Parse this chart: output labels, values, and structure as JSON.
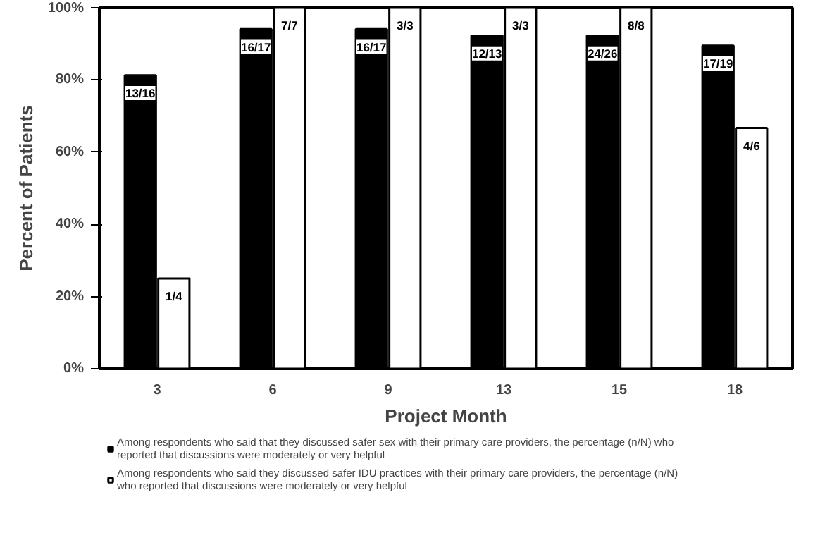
{
  "chart_data": {
    "type": "bar",
    "xlabel": "Project Month",
    "ylabel": "Percent of Patients",
    "categories": [
      "3",
      "6",
      "9",
      "13",
      "15",
      "18"
    ],
    "series": [
      {
        "name": "Among respondents who said that they discussed safer sex with their primary care providers, the percentage (n/N) who reported that discussions were moderately or very helpful",
        "color": "#000000",
        "values": [
          81.3,
          94.1,
          94.1,
          92.3,
          92.3,
          89.5
        ]
      },
      {
        "name": "Among respondents who said they discussed safer IDU practices with their primary care providers, the percentage (n/N) who reported that discussions were moderately or very helpful",
        "color": "#ffffff",
        "values": [
          25,
          100,
          100,
          100,
          100,
          66.7
        ]
      }
    ],
    "annotations": [
      {
        "text": "13/16",
        "x": "3",
        "y": 81.3
      },
      {
        "text": "16/17",
        "x": "6",
        "y": 94.1
      },
      {
        "text": "16/17",
        "x": "9",
        "y": 94.1
      },
      {
        "text": "12/13",
        "x": "13",
        "y": 92.3
      },
      {
        "text": "24/26",
        "x": "15",
        "y": 92.3
      },
      {
        "text": "17/19",
        "x": "18",
        "y": 89.5
      },
      {
        "text": "1/4",
        "x": "3",
        "y": 25
      },
      {
        "text": "7/7",
        "x": "6",
        "y": 100
      },
      {
        "text": "3/3",
        "x": "9",
        "y": 100
      },
      {
        "text": "3/3",
        "x": "13",
        "y": 100
      },
      {
        "text": "8/8",
        "x": "15",
        "y": 100
      },
      {
        "text": "4/6",
        "x": "18",
        "y": 66.7
      }
    ],
    "ylim": [
      0,
      100
    ],
    "yticks": [
      {
        "value": 0,
        "label": "0%"
      },
      {
        "value": 20,
        "label": "20%"
      },
      {
        "value": 40,
        "label": "40%"
      },
      {
        "value": 60,
        "label": "60%"
      },
      {
        "value": 80,
        "label": "80%"
      },
      {
        "value": 100,
        "label": "100%"
      }
    ],
    "legend": "bottom"
  }
}
